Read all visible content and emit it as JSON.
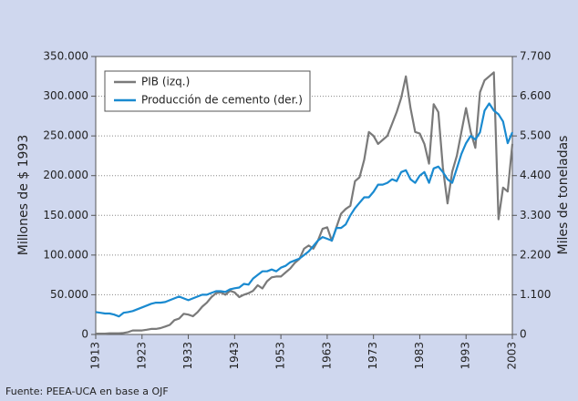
{
  "chart_data": {
    "type": "line",
    "ylabel": "Millones de $ 1993",
    "y2label": "Miles de toneladas",
    "source": "Fuente: PEEA-UCA en base a OJF",
    "legend": "upper left",
    "grid": true,
    "xlim": [
      1913,
      2003
    ],
    "xticks": [
      1913,
      1923,
      1933,
      1943,
      1953,
      1963,
      1973,
      1983,
      1993,
      2003
    ],
    "ylim": [
      0,
      350000
    ],
    "yticks": [
      0,
      {
        "value": 50000,
        "label": "50.000"
      },
      {
        "value": 100000,
        "label": "100.000"
      },
      {
        "value": 150000,
        "label": "150.000"
      },
      {
        "value": 200000,
        "label": "200.000"
      },
      {
        "value": 250000,
        "label": "250.000"
      },
      {
        "value": 300000,
        "label": "300.000"
      },
      {
        "value": 350000,
        "label": "350.000"
      }
    ],
    "y2lim": [
      0,
      7700
    ],
    "y2ticks": [
      0,
      {
        "value": 1100,
        "label": "1.100"
      },
      {
        "value": 2200,
        "label": "2.200"
      },
      {
        "value": 3300,
        "label": "3.300"
      },
      {
        "value": 4400,
        "label": "4.400"
      },
      {
        "value": 5500,
        "label": "5.500"
      },
      {
        "value": 6600,
        "label": "6.600"
      },
      {
        "value": 7700,
        "label": "7.700"
      }
    ],
    "x": [
      1913,
      1914,
      1915,
      1916,
      1917,
      1918,
      1919,
      1920,
      1921,
      1922,
      1923,
      1924,
      1925,
      1926,
      1927,
      1928,
      1929,
      1930,
      1931,
      1932,
      1933,
      1934,
      1935,
      1936,
      1937,
      1938,
      1939,
      1940,
      1941,
      1942,
      1943,
      1944,
      1945,
      1946,
      1947,
      1948,
      1949,
      1950,
      1951,
      1952,
      1953,
      1954,
      1955,
      1956,
      1957,
      1958,
      1959,
      1960,
      1961,
      1962,
      1963,
      1964,
      1965,
      1966,
      1967,
      1968,
      1969,
      1970,
      1971,
      1972,
      1973,
      1974,
      1975,
      1976,
      1977,
      1978,
      1979,
      1980,
      1981,
      1982,
      1983,
      1984,
      1985,
      1986,
      1987,
      1988,
      1989,
      1990,
      1991,
      1992,
      1993,
      1994,
      1995,
      1996,
      1997,
      1998,
      1999,
      2000,
      2001,
      2002,
      2003
    ],
    "series": [
      {
        "name": "PIB (izq.)",
        "color": "#7a7a7a",
        "axis": "y",
        "values": [
          1000,
          1000,
          1000,
          1500,
          1500,
          1500,
          2000,
          3000,
          5000,
          5000,
          5000,
          6000,
          7000,
          7000,
          8000,
          10000,
          12000,
          18000,
          20000,
          26000,
          25000,
          23000,
          28000,
          35000,
          40000,
          47000,
          52000,
          53000,
          50000,
          55000,
          53000,
          47000,
          50000,
          52000,
          55000,
          62000,
          58000,
          67000,
          72000,
          73000,
          73000,
          78000,
          83000,
          90000,
          95000,
          108000,
          112000,
          108000,
          118000,
          133000,
          135000,
          118000,
          135000,
          152000,
          158000,
          162000,
          193000,
          198000,
          220000,
          255000,
          250000,
          240000,
          245000,
          250000,
          265000,
          280000,
          298000,
          325000,
          285000,
          255000,
          253000,
          240000,
          215000,
          290000,
          280000,
          210000,
          165000,
          205000,
          225000,
          255000,
          285000,
          255000,
          235000,
          305000,
          320000,
          325000,
          330000,
          145000,
          185000,
          180000,
          240000
        ]
      },
      {
        "name": "Producción de cemento (der.)",
        "color": "#1a8ad0",
        "axis": "y2",
        "values": [
          620,
          600,
          580,
          580,
          550,
          500,
          600,
          620,
          650,
          700,
          750,
          800,
          850,
          880,
          880,
          900,
          950,
          1000,
          1050,
          1000,
          950,
          1000,
          1050,
          1100,
          1100,
          1150,
          1200,
          1200,
          1180,
          1250,
          1280,
          1300,
          1400,
          1380,
          1550,
          1650,
          1750,
          1750,
          1800,
          1750,
          1850,
          1900,
          2000,
          2050,
          2100,
          2200,
          2300,
          2450,
          2600,
          2700,
          2650,
          2600,
          2950,
          2950,
          3050,
          3300,
          3500,
          3650,
          3800,
          3800,
          3950,
          4150,
          4150,
          4200,
          4300,
          4250,
          4500,
          4550,
          4300,
          4200,
          4400,
          4500,
          4200,
          4600,
          4650,
          4500,
          4300,
          4200,
          4600,
          5000,
          5300,
          5500,
          5400,
          5600,
          6200,
          6400,
          6200,
          6100,
          5900,
          5300,
          5600
        ]
      }
    ]
  }
}
